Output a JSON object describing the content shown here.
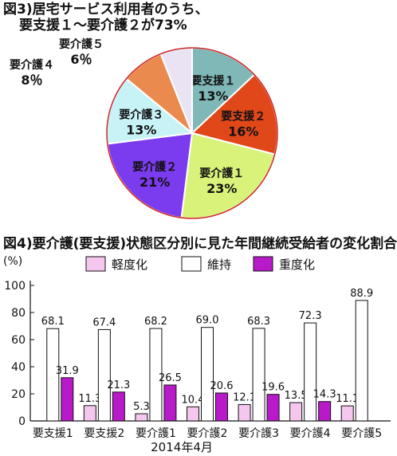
{
  "fig3": {
    "title_line1": "図3)居宅サービス利用者のうち、",
    "title_line2": "要支援１～要介護２が73%"
  },
  "fig4": {
    "title": "図4)要介護(要支援)状態区分別に見た年間継続受給者の変化割合"
  },
  "chart_data": [
    {
      "type": "pie",
      "title": "図3)居宅サービス利用者のうち、要支援１～要介護２が73%",
      "categories": [
        "要支援１",
        "要支援２",
        "要介護１",
        "要介護２",
        "要介護３",
        "要介護４",
        "要介護５"
      ],
      "percent_labels": [
        "13%",
        "16%",
        "23%",
        "21%",
        "13%",
        "8％",
        "6％"
      ],
      "values": [
        13,
        16,
        23,
        21,
        13,
        8,
        6
      ],
      "colors": [
        "#7fb8b7",
        "#e0481a",
        "#d9f27a",
        "#7b3cf0",
        "#c7f3f7",
        "#eb8a4f",
        "#e9e3f3"
      ]
    },
    {
      "type": "bar",
      "title": "図4)要介護(要支援)状態区分別に見た年間継続受給者の変化割合",
      "ylabel": "(%)",
      "xlabel": "2014年4月",
      "ylim": [
        0,
        100
      ],
      "yticks": [
        0,
        20,
        40,
        60,
        80,
        100
      ],
      "categories": [
        "要支援1",
        "要支援2",
        "要介護1",
        "要介護2",
        "要介護3",
        "要介護4",
        "要介護5"
      ],
      "legend_position": "top",
      "series": [
        {
          "name": "軽度化",
          "color": "#f5c6ee",
          "values": [
            null,
            11.3,
            5.3,
            10.4,
            12.1,
            13.5,
            11.1
          ],
          "labels": [
            "",
            "11.3",
            "5.3",
            "10.4",
            "12.1",
            "13.5",
            "11.1"
          ]
        },
        {
          "name": "維持",
          "color": "#ffffff",
          "values": [
            68.1,
            67.4,
            68.2,
            69.0,
            68.3,
            72.3,
            88.9
          ],
          "labels": [
            "68.1",
            "67.4",
            "68.2",
            "69.0",
            "68.3",
            "72.3",
            "88.9"
          ]
        },
        {
          "name": "重度化",
          "color": "#b81ac9",
          "values": [
            31.9,
            21.3,
            26.5,
            20.6,
            19.6,
            14.3,
            null
          ],
          "labels": [
            "31.9",
            "21.3",
            "26.5",
            "20.6",
            "19.6",
            "14.3",
            ""
          ]
        }
      ]
    }
  ]
}
